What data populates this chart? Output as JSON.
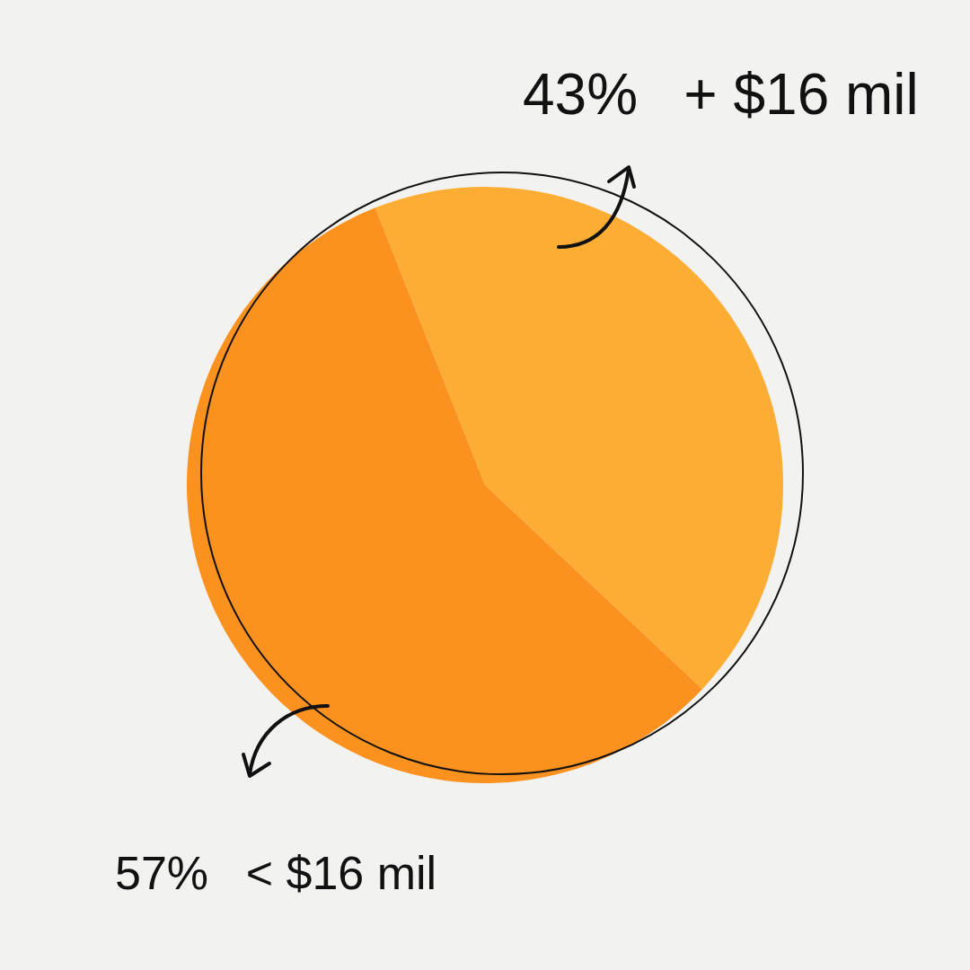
{
  "chart_data": {
    "type": "pie",
    "categories": [
      "+ $16 mil",
      "< $16 mil"
    ],
    "values": [
      43,
      57
    ],
    "colors": [
      "#fdad33",
      "#fb921f"
    ],
    "value_labels": [
      "43%",
      "57%"
    ],
    "legend": false
  }
}
